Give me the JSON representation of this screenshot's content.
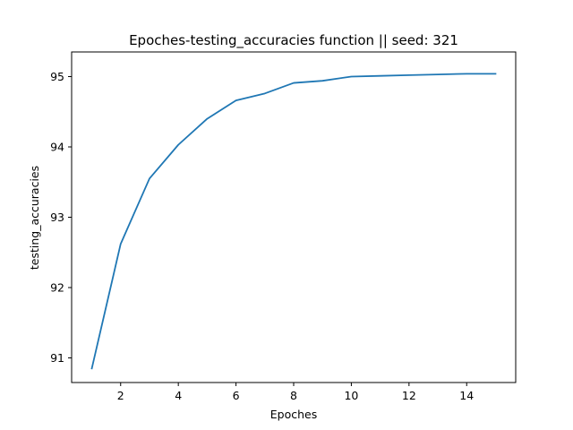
{
  "chart_data": {
    "type": "line",
    "title": "Epoches-testing_accuracies function || seed: 321",
    "xlabel": "Epoches",
    "ylabel": "testing_accuracies",
    "xlim": [
      0.3,
      15.7
    ],
    "ylim": [
      90.65,
      95.35
    ],
    "x_ticks": [
      2,
      4,
      6,
      8,
      10,
      12,
      14
    ],
    "y_ticks": [
      91,
      92,
      93,
      94,
      95
    ],
    "grid": false,
    "series": [
      {
        "color": "#1f77b4",
        "x": [
          1,
          2,
          3,
          4,
          5,
          6,
          7,
          8,
          9,
          10,
          11,
          12,
          13,
          14,
          15
        ],
        "y": [
          90.85,
          92.62,
          93.55,
          94.03,
          94.4,
          94.66,
          94.76,
          94.91,
          94.94,
          95.0,
          95.01,
          95.02,
          95.03,
          95.04,
          95.04
        ]
      }
    ]
  }
}
